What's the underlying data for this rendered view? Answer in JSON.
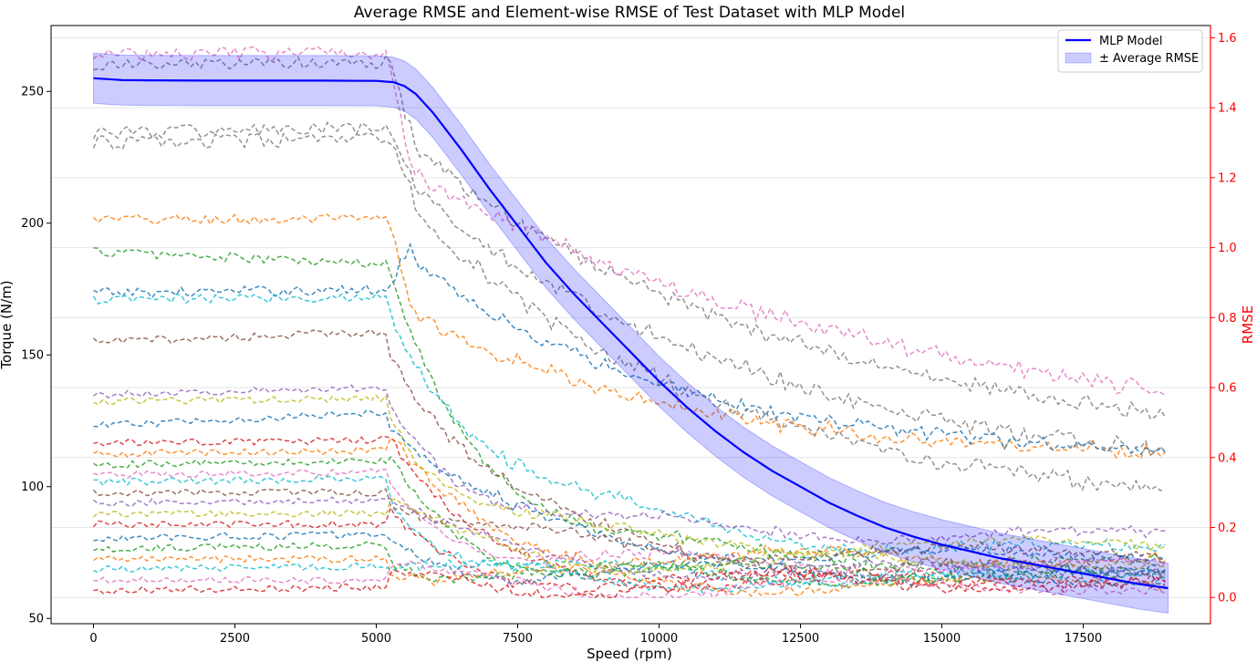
{
  "chart_data": {
    "type": "line",
    "title": "Average RMSE and Element-wise RMSE of Test Dataset with MLP Model",
    "xlabel": "Speed (rpm)",
    "ylabel": "Torque (N/m)",
    "y2label": "RMSE",
    "xlim": [
      -750,
      19750
    ],
    "ylim": [
      48,
      275
    ],
    "y2lim": [
      -0.075,
      1.635
    ],
    "x_ticks": [
      "0",
      "2500",
      "5000",
      "7500",
      "10000",
      "12500",
      "15000",
      "17500"
    ],
    "y_ticks": [
      "50",
      "100",
      "150",
      "200",
      "250"
    ],
    "y2_ticks": [
      "0.0",
      "0.2",
      "0.4",
      "0.6",
      "0.8",
      "1.0",
      "1.2",
      "1.4",
      "1.6"
    ],
    "grid": true,
    "legend_position": "top-right",
    "legend": [
      {
        "label": "MLP Model",
        "kind": "line",
        "color": "#0000ff"
      },
      {
        "label": "± Average RMSE",
        "kind": "band",
        "color": "#0000ff"
      }
    ],
    "series": [
      {
        "name": "MLP Model",
        "axis": "left",
        "color": "#0000ff",
        "band_halfwidth": 9.5,
        "x": [
          0,
          500,
          1000,
          2000,
          3000,
          4000,
          5000,
          5300,
          5500,
          5700,
          6000,
          6500,
          7000,
          7500,
          8000,
          8500,
          9000,
          9500,
          10000,
          10500,
          11000,
          11500,
          12000,
          12500,
          13000,
          13500,
          14000,
          14500,
          15000,
          15500,
          16000,
          16500,
          17000,
          17500,
          18000,
          18500,
          19000
        ],
        "y": [
          255,
          254.3,
          254.2,
          254.1,
          254.1,
          254.1,
          254,
          253.5,
          252,
          249,
          242,
          228,
          213,
          199,
          185,
          173,
          162,
          151,
          140,
          130,
          121,
          113,
          106,
          100,
          94,
          89,
          84.5,
          81,
          78,
          75.5,
          73,
          71,
          69,
          67,
          65,
          63,
          61.5
        ]
      },
      {
        "name": "",
        "axis": "right",
        "color": "#ff7f0e",
        "profile": "high",
        "a": 1.08,
        "b": 1.08,
        "c": 0.85,
        "e": 0.39,
        "k": 4800,
        "noise": 0.016
      },
      {
        "name": "",
        "axis": "right",
        "color": "#1f77b4",
        "profile": "high",
        "a": 0.87,
        "b": 0.88,
        "c": 1.02,
        "e": 0.39,
        "k": 4600,
        "noise": 0.015
      },
      {
        "name": "",
        "axis": "right",
        "color": "#2ca02c",
        "profile": "plateau",
        "a": 0.99,
        "b": 0.95,
        "e": 0.1,
        "k": 1800,
        "noise": 0.014
      },
      {
        "name": "",
        "axis": "right",
        "color": "#17becf",
        "profile": "plateau",
        "a": 0.85,
        "b": 0.86,
        "e": 0.14,
        "k": 2200,
        "noise": 0.014
      },
      {
        "name": "",
        "axis": "right",
        "color": "#8c564b",
        "profile": "plateau",
        "a": 0.73,
        "b": 0.76,
        "e": 0.08,
        "k": 2000,
        "noise": 0.012
      },
      {
        "name": "",
        "axis": "right",
        "color": "#7f7f7f",
        "profile": "high",
        "a": 1.33,
        "b": 1.34,
        "c": 1.22,
        "e": 0.31,
        "k": 6500,
        "noise": 0.02
      },
      {
        "name": "",
        "axis": "right",
        "color": "#7f7f7f",
        "profile": "high",
        "a": 1.3,
        "b": 1.31,
        "c": 1.18,
        "e": 0.24,
        "k": 5400,
        "noise": 0.02
      },
      {
        "name": "",
        "axis": "right",
        "color": "#7f7f7f",
        "profile": "high",
        "a": 1.52,
        "b": 1.53,
        "c": 1.35,
        "e": 0.4,
        "k": 6800,
        "noise": 0.018
      },
      {
        "name": "",
        "axis": "right",
        "color": "#e377c2",
        "profile": "high",
        "a": 1.55,
        "b": 1.56,
        "c": 1.25,
        "e": 0.41,
        "k": 9000,
        "noise": 0.02
      },
      {
        "name": "",
        "axis": "right",
        "color": "#9467bd",
        "profile": "plateau",
        "a": 0.58,
        "b": 0.6,
        "e": 0.18,
        "k": 1600,
        "noise": 0.01
      },
      {
        "name": "",
        "axis": "right",
        "color": "#bcbd22",
        "profile": "plateau",
        "a": 0.56,
        "b": 0.57,
        "e": 0.15,
        "k": 1400,
        "noise": 0.01
      },
      {
        "name": "",
        "axis": "right",
        "color": "#1f77b4",
        "profile": "plateau",
        "a": 0.49,
        "b": 0.53,
        "e": 0.12,
        "k": 1700,
        "noise": 0.01
      },
      {
        "name": "",
        "axis": "right",
        "color": "#d62728",
        "profile": "plateau",
        "a": 0.44,
        "b": 0.45,
        "e": 0.05,
        "k": 1200,
        "noise": 0.01
      },
      {
        "name": "",
        "axis": "right",
        "color": "#ff7f0e",
        "profile": "plateau",
        "a": 0.41,
        "b": 0.42,
        "e": 0.11,
        "k": 1500,
        "noise": 0.01
      },
      {
        "name": "",
        "axis": "right",
        "color": "#2ca02c",
        "profile": "plateau",
        "a": 0.38,
        "b": 0.39,
        "e": 0.07,
        "k": 1300,
        "noise": 0.01
      },
      {
        "name": "",
        "axis": "right",
        "color": "#e377c2",
        "profile": "plateau",
        "a": 0.35,
        "b": 0.36,
        "e": 0.09,
        "k": 1400,
        "noise": 0.01
      },
      {
        "name": "",
        "axis": "right",
        "color": "#17becf",
        "profile": "plateau",
        "a": 0.33,
        "b": 0.34,
        "e": 0.06,
        "k": 1100,
        "noise": 0.01
      },
      {
        "name": "",
        "axis": "right",
        "color": "#8c564b",
        "profile": "plateau",
        "a": 0.3,
        "b": 0.3,
        "e": 0.13,
        "k": 1600,
        "noise": 0.01
      },
      {
        "name": "",
        "axis": "right",
        "color": "#9467bd",
        "profile": "plateau",
        "a": 0.27,
        "b": 0.28,
        "e": 0.08,
        "k": 1400,
        "noise": 0.01
      },
      {
        "name": "",
        "axis": "right",
        "color": "#bcbd22",
        "profile": "plateau",
        "a": 0.24,
        "b": 0.24,
        "e": 0.1,
        "k": 1500,
        "noise": 0.01
      },
      {
        "name": "",
        "axis": "right",
        "color": "#d62728",
        "profile": "plateau",
        "a": 0.21,
        "b": 0.21,
        "e": 0.05,
        "k": 1200,
        "noise": 0.01
      },
      {
        "name": "",
        "axis": "right",
        "color": "#1f77b4",
        "profile": "plateau",
        "a": 0.17,
        "b": 0.18,
        "e": 0.07,
        "k": 1300,
        "noise": 0.01
      },
      {
        "name": "",
        "axis": "right",
        "color": "#2ca02c",
        "profile": "plateau",
        "a": 0.14,
        "b": 0.15,
        "e": 0.06,
        "k": 1100,
        "noise": 0.01
      },
      {
        "name": "",
        "axis": "right",
        "color": "#ff7f0e",
        "profile": "plateau",
        "a": 0.11,
        "b": 0.11,
        "e": 0.04,
        "k": 1000,
        "noise": 0.01
      },
      {
        "name": "",
        "axis": "right",
        "color": "#17becf",
        "profile": "plateau",
        "a": 0.08,
        "b": 0.09,
        "e": 0.05,
        "k": 900,
        "noise": 0.01
      },
      {
        "name": "",
        "axis": "right",
        "color": "#e377c2",
        "profile": "plateau",
        "a": 0.05,
        "b": 0.05,
        "e": 0.03,
        "k": 800,
        "noise": 0.01
      },
      {
        "name": "",
        "axis": "right",
        "color": "#d62728",
        "profile": "plateau",
        "a": 0.02,
        "b": 0.03,
        "e": 0.04,
        "k": 900,
        "noise": 0.01
      }
    ]
  }
}
